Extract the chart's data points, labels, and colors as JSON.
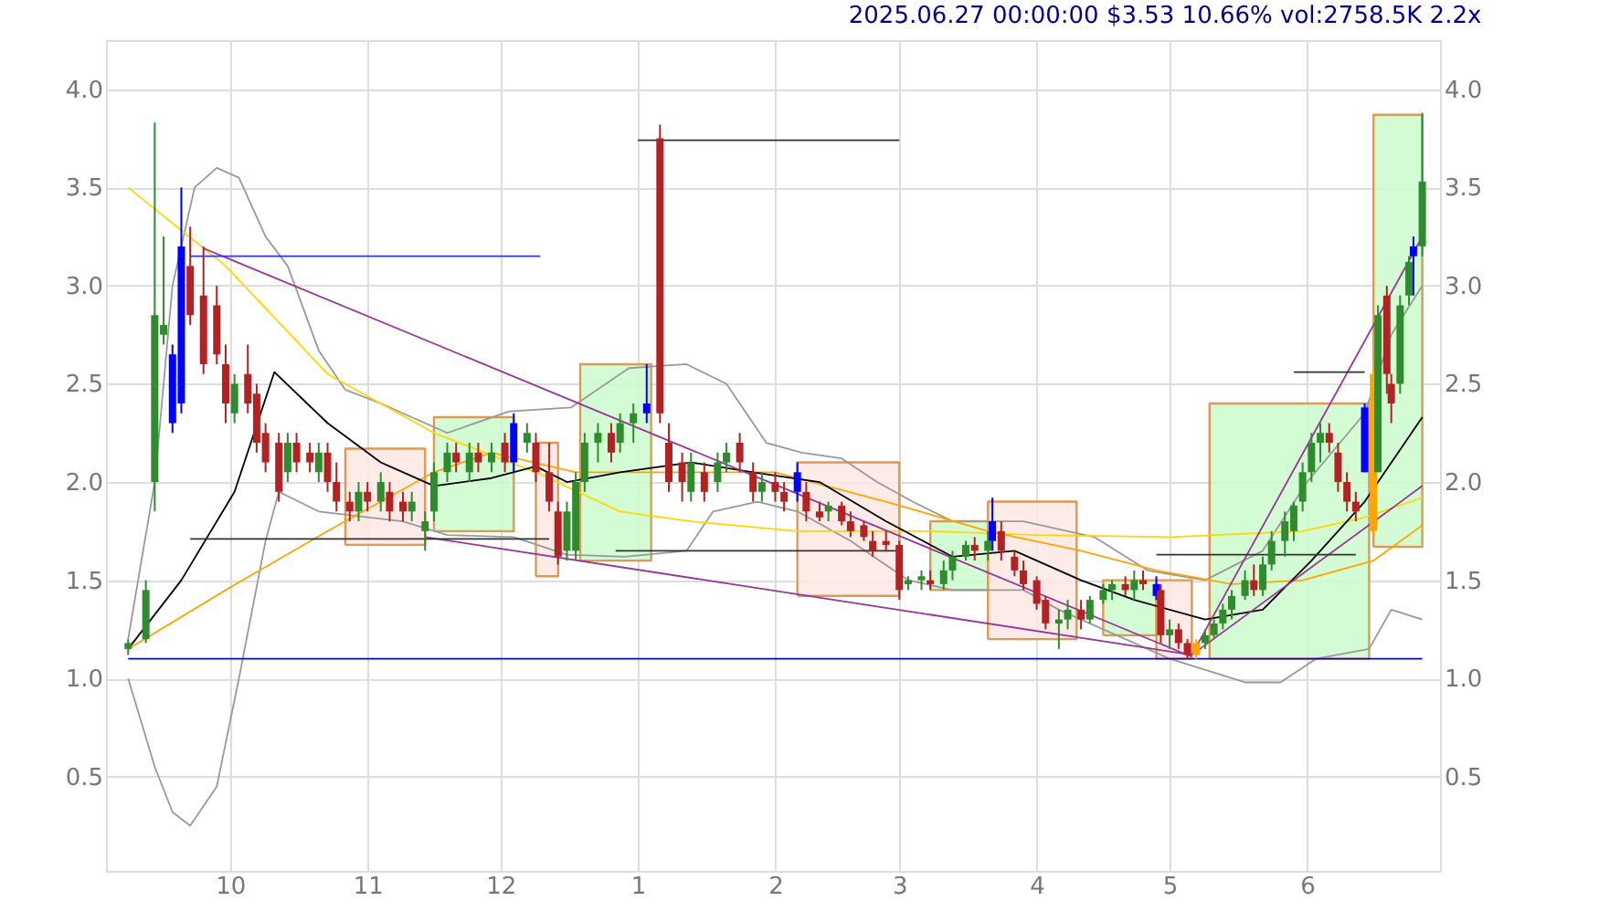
{
  "chart_data": {
    "type": "candlestick",
    "title": "2025.06.27 00:00:00 $3.53 10.66% vol:2758.5K 2.2x",
    "xlim": [
      "2024-09-03",
      "2025-07-01"
    ],
    "xticks": [
      {
        "value": "2024-10-01",
        "label": "10"
      },
      {
        "value": "2024-11-01",
        "label": "11"
      },
      {
        "value": "2024-12-01",
        "label": "12"
      },
      {
        "value": "2025-01-01",
        "label": "1"
      },
      {
        "value": "2025-02-01",
        "label": "2"
      },
      {
        "value": "2025-03-01",
        "label": "3"
      },
      {
        "value": "2025-04-01",
        "label": "4"
      },
      {
        "value": "2025-05-01",
        "label": "5"
      },
      {
        "value": "2025-06-01",
        "label": "6"
      }
    ],
    "ylim": [
      0.02,
      4.25
    ],
    "yticks": [
      0.5,
      {
        "value": 1,
        "label": "1.0"
      },
      1.5,
      {
        "value": 2,
        "label": "2.0"
      },
      2.5,
      {
        "value": 3,
        "label": "3.0"
      },
      3.5,
      {
        "value": 4,
        "label": "4.0"
      }
    ],
    "y2lim": [
      0.02,
      4.25
    ],
    "y2ticks": [
      0.5,
      {
        "value": 1,
        "label": "1.0"
      },
      1.5,
      {
        "value": 2,
        "label": "2.0"
      },
      2.5,
      {
        "value": 3,
        "label": "3.0"
      },
      3.5,
      {
        "value": 4,
        "label": "4.0"
      }
    ],
    "grid": true,
    "x": [
      "2024-09-08",
      "2024-09-12",
      "2024-09-14",
      "2024-09-16",
      "2024-09-18",
      "2024-09-20",
      "2024-09-22",
      "2024-09-25",
      "2024-09-28",
      "2024-09-30",
      "2024-10-02",
      "2024-10-05",
      "2024-10-07",
      "2024-10-09",
      "2024-10-12",
      "2024-10-14",
      "2024-10-16",
      "2024-10-19",
      "2024-10-21",
      "2024-10-23",
      "2024-10-25",
      "2024-10-28",
      "2024-10-30",
      "2024-11-01",
      "2024-11-04",
      "2024-11-06",
      "2024-11-09",
      "2024-11-11",
      "2024-11-14",
      "2024-11-16",
      "2024-11-19",
      "2024-11-21",
      "2024-11-24",
      "2024-11-26",
      "2024-11-29",
      "2024-12-02",
      "2024-12-04",
      "2024-12-07",
      "2024-12-09",
      "2024-12-12",
      "2024-12-14",
      "2024-12-16",
      "2024-12-18",
      "2024-12-20",
      "2024-12-23",
      "2024-12-26",
      "2024-12-28",
      "2024-12-31",
      "2025-01-03",
      "2025-01-06",
      "2025-01-08",
      "2025-01-11",
      "2025-01-13",
      "2025-01-16",
      "2025-01-19",
      "2025-01-21",
      "2025-01-24",
      "2025-01-27",
      "2025-01-29",
      "2025-02-01",
      "2025-02-03",
      "2025-02-06",
      "2025-02-08",
      "2025-02-11",
      "2025-02-13",
      "2025-02-16",
      "2025-02-18",
      "2025-02-21",
      "2025-02-23",
      "2025-02-26",
      "2025-03-01",
      "2025-03-03",
      "2025-03-06",
      "2025-03-08",
      "2025-03-11",
      "2025-03-13",
      "2025-03-16",
      "2025-03-18",
      "2025-03-21",
      "2025-03-22",
      "2025-03-24",
      "2025-03-27",
      "2025-03-29",
      "2025-04-01",
      "2025-04-03",
      "2025-04-06",
      "2025-04-08",
      "2025-04-11",
      "2025-04-13",
      "2025-04-16",
      "2025-04-18",
      "2025-04-21",
      "2025-04-23",
      "2025-04-25",
      "2025-04-28",
      "2025-04-29",
      "2025-05-01",
      "2025-05-03",
      "2025-05-05",
      "2025-05-07",
      "2025-05-09",
      "2025-05-11",
      "2025-05-13",
      "2025-05-15",
      "2025-05-18",
      "2025-05-20",
      "2025-05-22",
      "2025-05-24",
      "2025-05-27",
      "2025-05-29",
      "2025-05-31",
      "2025-06-02",
      "2025-06-04",
      "2025-06-06",
      "2025-06-08",
      "2025-06-10",
      "2025-06-12",
      "2025-06-14",
      "2025-06-16",
      "2025-06-17",
      "2025-06-19",
      "2025-06-20",
      "2025-06-22",
      "2025-06-24",
      "2025-06-25",
      "2025-06-27"
    ],
    "ohlc": [
      [
        1.15,
        1.2,
        1.12,
        1.18
      ],
      [
        1.2,
        1.5,
        1.18,
        1.45
      ],
      [
        2.0,
        3.83,
        1.85,
        2.85
      ],
      [
        2.75,
        3.25,
        2.7,
        2.8
      ],
      [
        2.65,
        2.7,
        2.25,
        2.3
      ],
      [
        2.4,
        3.5,
        2.35,
        3.2
      ],
      [
        3.1,
        3.3,
        2.8,
        2.85
      ],
      [
        2.95,
        3.2,
        2.55,
        2.6
      ],
      [
        2.9,
        3.0,
        2.6,
        2.65
      ],
      [
        2.6,
        2.7,
        2.3,
        2.4
      ],
      [
        2.35,
        2.55,
        2.3,
        2.5
      ],
      [
        2.55,
        2.7,
        2.35,
        2.4
      ],
      [
        2.45,
        2.5,
        2.15,
        2.2
      ],
      [
        2.25,
        2.3,
        2.05,
        2.1
      ],
      [
        2.2,
        2.25,
        1.9,
        1.95
      ],
      [
        2.05,
        2.25,
        2.0,
        2.2
      ],
      [
        2.2,
        2.25,
        2.05,
        2.1
      ],
      [
        2.15,
        2.2,
        2.05,
        2.1
      ],
      [
        2.05,
        2.2,
        2.0,
        2.15
      ],
      [
        2.15,
        2.2,
        1.95,
        2.0
      ],
      [
        2.0,
        2.1,
        1.85,
        1.9
      ],
      [
        1.9,
        1.95,
        1.8,
        1.85
      ],
      [
        1.85,
        2.0,
        1.8,
        1.95
      ],
      [
        1.95,
        2.0,
        1.85,
        1.9
      ],
      [
        1.9,
        2.05,
        1.85,
        2.0
      ],
      [
        1.95,
        2.0,
        1.8,
        1.85
      ],
      [
        1.9,
        1.95,
        1.8,
        1.85
      ],
      [
        1.85,
        1.95,
        1.8,
        1.9
      ],
      [
        1.75,
        1.85,
        1.65,
        1.8
      ],
      [
        1.85,
        2.1,
        1.8,
        2.05
      ],
      [
        2.05,
        2.2,
        2.0,
        2.15
      ],
      [
        2.15,
        2.2,
        2.05,
        2.1
      ],
      [
        2.05,
        2.2,
        2.0,
        2.15
      ],
      [
        2.15,
        2.2,
        2.05,
        2.1
      ],
      [
        2.1,
        2.2,
        2.05,
        2.15
      ],
      [
        2.2,
        2.25,
        2.05,
        2.1
      ],
      [
        2.1,
        2.35,
        2.05,
        2.3
      ],
      [
        2.2,
        2.3,
        2.15,
        2.25
      ],
      [
        2.2,
        2.25,
        2.0,
        2.05
      ],
      [
        2.05,
        2.2,
        1.85,
        1.9
      ],
      [
        1.85,
        1.9,
        1.58,
        1.62
      ],
      [
        1.65,
        1.9,
        1.6,
        1.85
      ],
      [
        1.65,
        2.05,
        1.6,
        2.0
      ],
      [
        2.0,
        2.25,
        1.95,
        2.2
      ],
      [
        2.2,
        2.3,
        2.1,
        2.25
      ],
      [
        2.25,
        2.3,
        2.1,
        2.15
      ],
      [
        2.2,
        2.35,
        2.15,
        2.3
      ],
      [
        2.3,
        2.4,
        2.2,
        2.35
      ],
      [
        2.35,
        2.6,
        2.3,
        2.4
      ],
      [
        3.75,
        3.82,
        2.3,
        2.35
      ],
      [
        2.2,
        2.3,
        1.95,
        2.0
      ],
      [
        2.1,
        2.15,
        1.9,
        2.0
      ],
      [
        1.95,
        2.15,
        1.9,
        2.1
      ],
      [
        2.05,
        2.1,
        1.9,
        1.95
      ],
      [
        2.0,
        2.15,
        1.95,
        2.1
      ],
      [
        2.1,
        2.2,
        2.05,
        2.15
      ],
      [
        2.2,
        2.25,
        2.05,
        2.1
      ],
      [
        2.05,
        2.1,
        1.9,
        1.95
      ],
      [
        1.95,
        2.05,
        1.9,
        2.0
      ],
      [
        2.0,
        2.05,
        1.9,
        1.95
      ],
      [
        1.95,
        2.0,
        1.85,
        1.9
      ],
      [
        2.05,
        2.1,
        1.9,
        1.95
      ],
      [
        1.95,
        2.0,
        1.8,
        1.85
      ],
      [
        1.85,
        1.9,
        1.8,
        1.82
      ],
      [
        1.85,
        1.9,
        1.8,
        1.88
      ],
      [
        1.88,
        1.9,
        1.78,
        1.8
      ],
      [
        1.8,
        1.85,
        1.72,
        1.75
      ],
      [
        1.78,
        1.8,
        1.7,
        1.72
      ],
      [
        1.7,
        1.75,
        1.62,
        1.65
      ],
      [
        1.7,
        1.75,
        1.65,
        1.68
      ],
      [
        1.68,
        1.7,
        1.4,
        1.45
      ],
      [
        1.48,
        1.52,
        1.45,
        1.5
      ],
      [
        1.5,
        1.55,
        1.45,
        1.52
      ],
      [
        1.5,
        1.55,
        1.45,
        1.48
      ],
      [
        1.48,
        1.6,
        1.45,
        1.55
      ],
      [
        1.55,
        1.65,
        1.5,
        1.62
      ],
      [
        1.62,
        1.7,
        1.6,
        1.68
      ],
      [
        1.68,
        1.72,
        1.6,
        1.65
      ],
      [
        1.65,
        1.75,
        1.6,
        1.7
      ],
      [
        1.7,
        1.92,
        1.65,
        1.8
      ],
      [
        1.75,
        1.8,
        1.6,
        1.65
      ],
      [
        1.62,
        1.65,
        1.52,
        1.55
      ],
      [
        1.55,
        1.6,
        1.45,
        1.48
      ],
      [
        1.5,
        1.52,
        1.35,
        1.38
      ],
      [
        1.4,
        1.42,
        1.25,
        1.28
      ],
      [
        1.28,
        1.35,
        1.15,
        1.3
      ],
      [
        1.3,
        1.4,
        1.25,
        1.35
      ],
      [
        1.35,
        1.4,
        1.25,
        1.3
      ],
      [
        1.3,
        1.42,
        1.28,
        1.4
      ],
      [
        1.4,
        1.48,
        1.38,
        1.45
      ],
      [
        1.45,
        1.5,
        1.4,
        1.48
      ],
      [
        1.48,
        1.52,
        1.42,
        1.45
      ],
      [
        1.45,
        1.55,
        1.4,
        1.5
      ],
      [
        1.5,
        1.55,
        1.45,
        1.48
      ],
      [
        1.48,
        1.52,
        1.4,
        1.42
      ],
      [
        1.45,
        1.48,
        1.18,
        1.22
      ],
      [
        1.22,
        1.3,
        1.15,
        1.25
      ],
      [
        1.25,
        1.28,
        1.15,
        1.18
      ],
      [
        1.18,
        1.2,
        1.1,
        1.12
      ],
      [
        1.12,
        1.2,
        1.1,
        1.18
      ],
      [
        1.18,
        1.25,
        1.15,
        1.22
      ],
      [
        1.22,
        1.3,
        1.2,
        1.28
      ],
      [
        1.28,
        1.38,
        1.25,
        1.35
      ],
      [
        1.35,
        1.45,
        1.3,
        1.42
      ],
      [
        1.42,
        1.55,
        1.4,
        1.5
      ],
      [
        1.5,
        1.58,
        1.42,
        1.45
      ],
      [
        1.45,
        1.62,
        1.42,
        1.58
      ],
      [
        1.58,
        1.75,
        1.55,
        1.7
      ],
      [
        1.7,
        1.85,
        1.62,
        1.8
      ],
      [
        1.75,
        1.9,
        1.7,
        1.88
      ],
      [
        1.9,
        2.1,
        1.85,
        2.05
      ],
      [
        2.05,
        2.25,
        2.0,
        2.2
      ],
      [
        2.2,
        2.3,
        2.1,
        2.25
      ],
      [
        2.25,
        2.3,
        2.15,
        2.2
      ],
      [
        2.15,
        2.2,
        1.95,
        2.0
      ],
      [
        2.0,
        2.05,
        1.85,
        1.9
      ],
      [
        1.9,
        1.95,
        1.8,
        1.85
      ],
      [
        2.05,
        2.4,
        2.05,
        2.38
      ],
      [
        1.75,
        2.6,
        1.72,
        2.55
      ],
      [
        2.05,
        2.9,
        2.05,
        2.85
      ],
      [
        2.95,
        3.0,
        2.45,
        2.55
      ],
      [
        2.5,
        2.55,
        2.3,
        2.4
      ],
      [
        2.5,
        2.95,
        2.45,
        2.9
      ],
      [
        2.95,
        3.15,
        2.9,
        3.12
      ],
      [
        3.15,
        3.25,
        2.95,
        3.2
      ],
      [
        3.2,
        3.88,
        3.15,
        3.53
      ]
    ],
    "colors": [
      "#2e8b2e",
      "#2e8b2e",
      "#2e8b2e",
      "#2e8b2e",
      "#0000ff",
      "#0000ff",
      "#b22222",
      "#b22222",
      "#b22222",
      "#b22222",
      "#2e8b2e",
      "#b22222",
      "#b22222",
      "#b22222",
      "#b22222",
      "#2e8b2e",
      "#b22222",
      "#b22222",
      "#2e8b2e",
      "#b22222",
      "#b22222",
      "#b22222",
      "#2e8b2e",
      "#b22222",
      "#2e8b2e",
      "#b22222",
      "#b22222",
      "#2e8b2e",
      "#2e8b2e",
      "#2e8b2e",
      "#2e8b2e",
      "#b22222",
      "#2e8b2e",
      "#b22222",
      "#2e8b2e",
      "#b22222",
      "#0000ff",
      "#2e8b2e",
      "#b22222",
      "#b22222",
      "#b22222",
      "#2e8b2e",
      "#2e8b2e",
      "#2e8b2e",
      "#2e8b2e",
      "#b22222",
      "#2e8b2e",
      "#2e8b2e",
      "#0000ff",
      "#b22222",
      "#b22222",
      "#b22222",
      "#2e8b2e",
      "#b22222",
      "#2e8b2e",
      "#2e8b2e",
      "#b22222",
      "#b22222",
      "#2e8b2e",
      "#b22222",
      "#b22222",
      "#0000ff",
      "#b22222",
      "#b22222",
      "#2e8b2e",
      "#b22222",
      "#b22222",
      "#b22222",
      "#b22222",
      "#b22222",
      "#b22222",
      "#2e8b2e",
      "#2e8b2e",
      "#b22222",
      "#2e8b2e",
      "#2e8b2e",
      "#2e8b2e",
      "#b22222",
      "#2e8b2e",
      "#0000ff",
      "#b22222",
      "#b22222",
      "#b22222",
      "#b22222",
      "#b22222",
      "#2e8b2e",
      "#2e8b2e",
      "#b22222",
      "#2e8b2e",
      "#2e8b2e",
      "#2e8b2e",
      "#b22222",
      "#2e8b2e",
      "#b22222",
      "#0000ff",
      "#b22222",
      "#2e8b2e",
      "#b22222",
      "#b22222",
      "#ffa500",
      "#2e8b2e",
      "#2e8b2e",
      "#2e8b2e",
      "#2e8b2e",
      "#2e8b2e",
      "#b22222",
      "#2e8b2e",
      "#2e8b2e",
      "#2e8b2e",
      "#2e8b2e",
      "#2e8b2e",
      "#2e8b2e",
      "#2e8b2e",
      "#b22222",
      "#b22222",
      "#b22222",
      "#b22222",
      "#0000ff",
      "#ffa500",
      "#2e8b2e",
      "#b22222",
      "#b22222",
      "#2e8b2e",
      "#2e8b2e",
      "#0000ff",
      "#2e8b2e"
    ],
    "series": [
      {
        "type": "area",
        "color": "#fde8e4",
        "x": [
          "2024-10-27",
          "2024-10-27",
          "2024-11-14",
          "2024-11-14",
          "2024-10-27"
        ],
        "values": [
          1.68,
          2.17,
          2.17,
          1.68,
          1.68
        ]
      },
      {
        "type": "area",
        "color": "#ccfccc",
        "x": [
          "2024-11-16",
          "2024-11-16",
          "2024-12-04",
          "2024-12-04",
          "2024-11-16"
        ],
        "values": [
          1.75,
          2.33,
          2.33,
          1.75,
          1.75
        ]
      },
      {
        "type": "area",
        "color": "#fde8e4",
        "x": [
          "2024-12-09",
          "2024-12-09",
          "2024-12-14",
          "2024-12-14",
          "2024-12-09"
        ],
        "values": [
          1.52,
          2.2,
          2.2,
          1.52,
          1.52
        ]
      },
      {
        "type": "area",
        "color": "#ccfccc",
        "x": [
          "2024-12-19",
          "2024-12-19",
          "2025-01-04",
          "2025-01-04",
          "2024-12-19"
        ],
        "values": [
          1.6,
          2.6,
          2.6,
          1.6,
          1.6
        ]
      },
      {
        "type": "area",
        "color": "#fde8e4",
        "x": [
          "2025-02-06",
          "2025-02-06",
          "2025-03-01",
          "2025-03-01",
          "2025-02-06"
        ],
        "values": [
          1.42,
          2.1,
          2.1,
          1.42,
          1.42
        ]
      },
      {
        "type": "area",
        "color": "#ccfccc",
        "x": [
          "2025-03-08",
          "2025-03-08",
          "2025-03-21",
          "2025-03-21",
          "2025-03-08"
        ],
        "values": [
          1.45,
          1.8,
          1.8,
          1.45,
          1.45
        ]
      },
      {
        "type": "area",
        "color": "#fde8e4",
        "x": [
          "2025-03-21",
          "2025-03-21",
          "2025-04-10",
          "2025-04-10",
          "2025-03-21"
        ],
        "values": [
          1.2,
          1.9,
          1.9,
          1.2,
          1.2
        ]
      },
      {
        "type": "area",
        "color": "#ccfccc",
        "x": [
          "2025-04-16",
          "2025-04-16",
          "2025-04-28",
          "2025-04-28",
          "2025-04-16"
        ],
        "values": [
          1.22,
          1.5,
          1.5,
          1.22,
          1.22
        ]
      },
      {
        "type": "area",
        "color": "#fde8e4",
        "x": [
          "2025-04-28",
          "2025-04-28",
          "2025-05-06",
          "2025-05-06",
          "2025-04-28"
        ],
        "values": [
          1.1,
          1.5,
          1.5,
          1.1,
          1.1
        ]
      },
      {
        "type": "area",
        "color": "#ccfccc",
        "x": [
          "2025-05-10",
          "2025-05-10",
          "2025-06-15",
          "2025-06-15",
          "2025-05-10"
        ],
        "values": [
          1.1,
          2.4,
          2.4,
          1.1,
          1.1
        ]
      },
      {
        "type": "area",
        "color": "#ccfccc",
        "x": [
          "2025-06-16",
          "2025-06-16",
          "2025-06-27",
          "2025-06-27",
          "2025-06-16"
        ],
        "values": [
          1.67,
          3.87,
          3.87,
          1.67,
          1.67
        ]
      },
      {
        "type": "line",
        "color": "#999999",
        "x": [
          "2024-09-08",
          "2024-09-14",
          "2024-09-18",
          "2024-09-23",
          "2024-09-28",
          "2024-10-03",
          "2024-10-09",
          "2024-10-14",
          "2024-10-21",
          "2024-10-27",
          "2024-11-04",
          "2024-11-19",
          "2024-12-03",
          "2024-12-17",
          "2024-12-30",
          "2025-01-12",
          "2025-01-21",
          "2025-01-30",
          "2025-02-07",
          "2025-02-16",
          "2025-02-24",
          "2025-03-04",
          "2025-03-13",
          "2025-03-29",
          "2025-04-14",
          "2025-04-26",
          "2025-05-09",
          "2025-05-22",
          "2025-06-01",
          "2025-06-14",
          "2025-06-20",
          "2025-06-27"
        ],
        "values": [
          1.2,
          2.0,
          3.0,
          3.5,
          3.6,
          3.55,
          3.25,
          3.1,
          2.67,
          2.47,
          2.4,
          2.25,
          2.36,
          2.38,
          2.58,
          2.6,
          2.5,
          2.2,
          2.15,
          2.12,
          2.0,
          1.9,
          1.8,
          1.8,
          1.72,
          1.55,
          1.5,
          1.65,
          2.0,
          2.35,
          2.75,
          3.0
        ]
      },
      {
        "type": "line",
        "color": "#999999",
        "x": [
          "2024-09-08",
          "2024-09-14",
          "2024-09-18",
          "2024-09-22",
          "2024-09-28",
          "2024-10-03",
          "2024-10-09",
          "2024-10-12",
          "2024-10-21",
          "2024-11-09",
          "2024-11-19",
          "2024-12-04",
          "2024-12-16",
          "2024-12-29",
          "2025-01-12",
          "2025-01-18",
          "2025-01-28",
          "2025-02-06",
          "2025-02-18",
          "2025-03-03",
          "2025-03-13",
          "2025-03-29",
          "2025-04-06",
          "2025-04-16",
          "2025-05-01",
          "2025-05-18",
          "2025-05-26",
          "2025-06-03",
          "2025-06-15",
          "2025-06-20",
          "2025-06-27"
        ],
        "values": [
          1.0,
          0.55,
          0.32,
          0.25,
          0.45,
          1.0,
          1.7,
          1.95,
          1.85,
          1.8,
          1.73,
          1.72,
          1.63,
          1.62,
          1.65,
          1.85,
          1.9,
          1.85,
          1.7,
          1.5,
          1.45,
          1.45,
          1.35,
          1.25,
          1.1,
          0.98,
          0.98,
          1.1,
          1.15,
          1.35,
          1.3
        ]
      },
      {
        "type": "line",
        "color": "#ffd700",
        "x": [
          "2024-09-08",
          "2024-09-30",
          "2024-10-23",
          "2024-11-16",
          "2024-12-09",
          "2024-12-28",
          "2025-01-13",
          "2025-02-06",
          "2025-03-08",
          "2025-04-01",
          "2025-05-01",
          "2025-05-31",
          "2025-06-14",
          "2025-06-27"
        ],
        "values": [
          3.5,
          3.1,
          2.55,
          2.25,
          2.05,
          1.85,
          1.8,
          1.75,
          1.75,
          1.73,
          1.72,
          1.75,
          1.82,
          1.92
        ]
      },
      {
        "type": "line",
        "color": "#ffa500",
        "x": [
          "2024-09-08",
          "2024-09-30",
          "2024-10-23",
          "2024-11-16",
          "2024-11-29",
          "2024-12-18",
          "2025-01-13",
          "2025-02-01",
          "2025-02-26",
          "2025-03-21",
          "2025-04-11",
          "2025-04-28",
          "2025-05-15",
          "2025-05-31",
          "2025-06-16",
          "2025-06-27"
        ],
        "values": [
          1.15,
          1.45,
          1.75,
          2.05,
          2.15,
          2.05,
          2.05,
          2.05,
          1.9,
          1.75,
          1.65,
          1.55,
          1.48,
          1.5,
          1.6,
          1.78
        ]
      },
      {
        "type": "line",
        "color": "#000000",
        "x": [
          "2024-09-08",
          "2024-09-20",
          "2024-10-02",
          "2024-10-11",
          "2024-10-23",
          "2024-11-04",
          "2024-11-16",
          "2024-11-29",
          "2024-12-09",
          "2024-12-16",
          "2024-12-28",
          "2025-01-13",
          "2025-01-27",
          "2025-02-11",
          "2025-02-26",
          "2025-03-13",
          "2025-03-27",
          "2025-04-11",
          "2025-04-23",
          "2025-05-09",
          "2025-05-22",
          "2025-06-02",
          "2025-06-14",
          "2025-06-27"
        ],
        "values": [
          1.15,
          1.5,
          1.95,
          2.56,
          2.3,
          2.1,
          1.98,
          2.02,
          2.08,
          2.0,
          2.05,
          2.1,
          2.05,
          2.0,
          1.8,
          1.62,
          1.65,
          1.5,
          1.4,
          1.3,
          1.35,
          1.6,
          1.9,
          2.33
        ]
      },
      {
        "type": "line",
        "color": "#993399",
        "x": [
          "2024-09-25",
          "2025-05-06"
        ],
        "values": [
          3.19,
          1.11
        ]
      },
      {
        "type": "line",
        "color": "#993399",
        "x": [
          "2024-11-14",
          "2025-05-06"
        ],
        "values": [
          1.72,
          1.12
        ]
      },
      {
        "type": "line",
        "color": "#993399",
        "x": [
          "2025-05-06",
          "2025-06-27"
        ],
        "values": [
          1.12,
          3.25
        ]
      },
      {
        "type": "line",
        "color": "#993399",
        "x": [
          "2025-05-06",
          "2025-06-27"
        ],
        "values": [
          1.12,
          1.98
        ]
      },
      {
        "type": "line",
        "color": "#3333ff",
        "x": [
          "2024-09-22",
          "2024-12-10"
        ],
        "values": [
          3.15,
          3.15
        ]
      },
      {
        "type": "line",
        "color": "#333333",
        "x": [
          "2025-01-01",
          "2025-03-01"
        ],
        "values": [
          3.74,
          3.74
        ]
      },
      {
        "type": "line",
        "color": "#333333",
        "x": [
          "2024-09-22",
          "2024-12-12"
        ],
        "values": [
          1.71,
          1.71
        ]
      },
      {
        "type": "line",
        "color": "#333333",
        "x": [
          "2024-12-27",
          "2025-03-01"
        ],
        "values": [
          1.65,
          1.65
        ]
      },
      {
        "type": "line",
        "color": "#333333",
        "x": [
          "2025-04-28",
          "2025-06-12"
        ],
        "values": [
          1.63,
          1.63
        ]
      },
      {
        "type": "line",
        "color": "#333333",
        "x": [
          "2025-05-29",
          "2025-06-14"
        ],
        "values": [
          2.56,
          2.56
        ]
      },
      {
        "type": "line",
        "color": "#0000ff",
        "x": [
          "2024-09-08",
          "2025-06-27"
        ],
        "values": [
          1.1,
          1.1
        ]
      }
    ]
  }
}
